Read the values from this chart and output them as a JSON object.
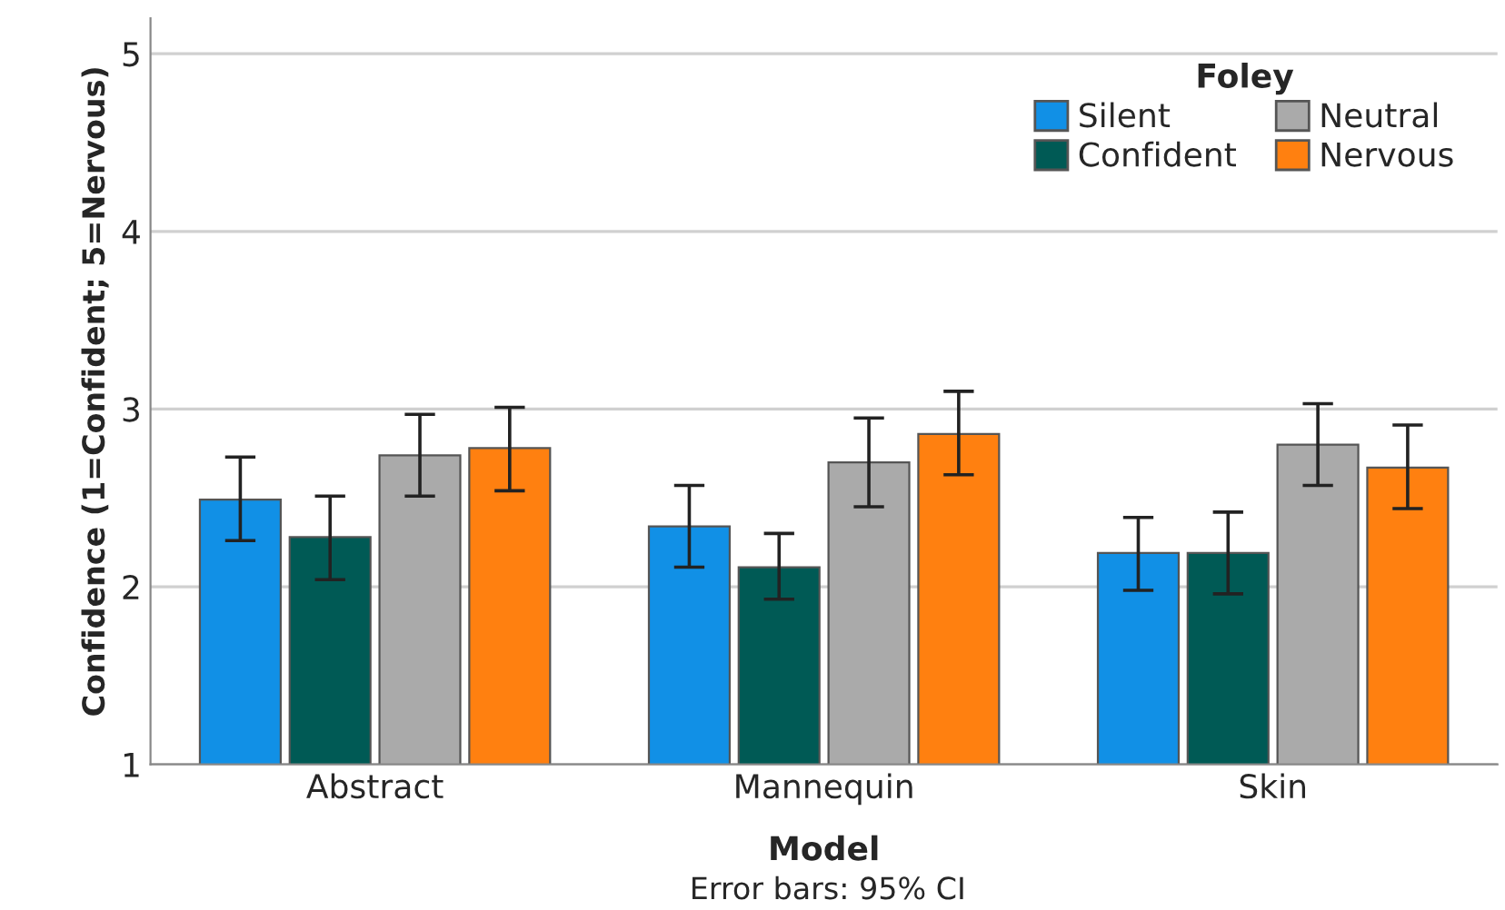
{
  "chart_data": {
    "type": "bar",
    "xlabel": "Model",
    "ylabel": "Confidence (1=Confident; 5=Nervous)",
    "legend_title": "Foley",
    "categories": [
      "Abstract",
      "Mannequin",
      "Skin"
    ],
    "series": [
      {
        "name": "Silent",
        "color": "#1190e6",
        "values": [
          2.49,
          2.34,
          2.19
        ],
        "errors": [
          [
            2.26,
            2.73
          ],
          [
            2.11,
            2.57
          ],
          [
            1.98,
            2.39
          ]
        ]
      },
      {
        "name": "Confident",
        "color": "#005a55",
        "values": [
          2.28,
          2.11,
          2.19
        ],
        "errors": [
          [
            2.04,
            2.51
          ],
          [
            1.93,
            2.3
          ],
          [
            1.96,
            2.42
          ]
        ]
      },
      {
        "name": "Neutral",
        "color": "#aaaaaa",
        "values": [
          2.74,
          2.7,
          2.8
        ],
        "errors": [
          [
            2.51,
            2.97
          ],
          [
            2.45,
            2.95
          ],
          [
            2.57,
            3.03
          ]
        ]
      },
      {
        "name": "Nervous",
        "color": "#ff8010",
        "values": [
          2.78,
          2.86,
          2.67
        ],
        "errors": [
          [
            2.54,
            3.01
          ],
          [
            2.63,
            3.1
          ],
          [
            2.44,
            2.91
          ]
        ]
      }
    ],
    "ylim": [
      1,
      5.2
    ],
    "yticks": [
      1,
      2,
      3,
      4,
      5
    ],
    "grid": "y",
    "legend": "top right",
    "annotations": [
      "Error bars: 95% CI"
    ]
  }
}
